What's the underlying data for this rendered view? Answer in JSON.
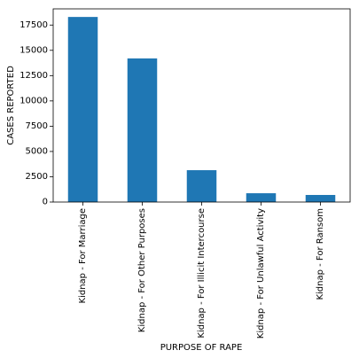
{
  "chart_data": {
    "type": "bar",
    "title": "",
    "xlabel": "PURPOSE OF RAPE",
    "ylabel": "CASES REPORTED",
    "categories": [
      "Kidnap - For Marriage",
      "Kidnap - For Other Purposes",
      "Kidnap - For Illicit Intercourse",
      "Kidnap - For Unlawful Activity",
      "Kidnap - For Ransom"
    ],
    "values": [
      18300,
      14200,
      3150,
      870,
      700
    ],
    "ylim": [
      0,
      19100
    ],
    "yticks": [
      0,
      2500,
      5000,
      7500,
      10000,
      12500,
      15000,
      17500
    ],
    "ytick_labels": [
      "0",
      "2500",
      "5000",
      "7500",
      "10000",
      "12500",
      "15000",
      "17500"
    ],
    "grid": false,
    "legend": "none",
    "colors": {
      "bar": "#1f77b4",
      "axis": "#000000",
      "background": "#ffffff"
    }
  }
}
